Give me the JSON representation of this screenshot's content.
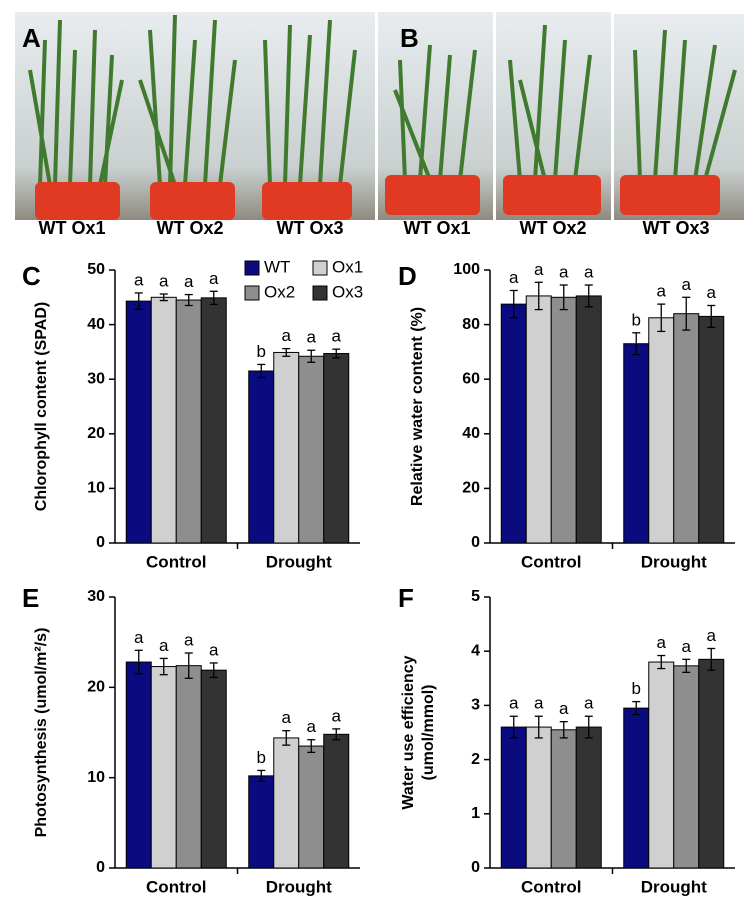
{
  "photo_panels": [
    {
      "label": "A",
      "captions": [
        "WT Ox1",
        "WT Ox2",
        "WT Ox3"
      ]
    },
    {
      "label": "B",
      "captions": [
        "WT Ox1",
        "WT Ox2",
        "WT Ox3"
      ]
    }
  ],
  "chart_data": [
    {
      "type": "bar",
      "panel": "C",
      "ylabel": "Chlorophyll content (SPAD)",
      "categories": [
        "Control",
        "Drought"
      ],
      "ylim": [
        0,
        50
      ],
      "yticks": [
        0,
        10,
        20,
        30,
        40,
        50
      ],
      "legend": "top-right",
      "series": [
        {
          "name": "WT",
          "color": "#0b0b80",
          "values": [
            44.3,
            31.5
          ],
          "errors": [
            1.5,
            1.2
          ],
          "letters": [
            "a",
            "b"
          ]
        },
        {
          "name": "Ox1",
          "color": "#d0d0d0",
          "values": [
            45,
            34.9
          ],
          "errors": [
            0.6,
            0.7
          ],
          "letters": [
            "a",
            "a"
          ]
        },
        {
          "name": "Ox2",
          "color": "#8e8e8e",
          "values": [
            44.5,
            34.2
          ],
          "errors": [
            1.0,
            1.1
          ],
          "letters": [
            "a",
            "a"
          ]
        },
        {
          "name": "Ox3",
          "color": "#333333",
          "values": [
            44.9,
            34.7
          ],
          "errors": [
            1.2,
            0.8
          ],
          "letters": [
            "a",
            "a"
          ]
        }
      ]
    },
    {
      "type": "bar",
      "panel": "D",
      "ylabel": "Relative water content (%)",
      "categories": [
        "Control",
        "Drought"
      ],
      "ylim": [
        0,
        100
      ],
      "yticks": [
        0,
        20,
        40,
        60,
        80,
        100
      ],
      "series": [
        {
          "color": "#0b0b80",
          "values": [
            87.5,
            73
          ],
          "errors": [
            5,
            4
          ],
          "letters": [
            "a",
            "b"
          ]
        },
        {
          "color": "#d0d0d0",
          "values": [
            90.5,
            82.5
          ],
          "errors": [
            5,
            5
          ],
          "letters": [
            "a",
            "a"
          ]
        },
        {
          "color": "#8e8e8e",
          "values": [
            90,
            84
          ],
          "errors": [
            4.5,
            6
          ],
          "letters": [
            "a",
            "a"
          ]
        },
        {
          "color": "#333333",
          "values": [
            90.5,
            83
          ],
          "errors": [
            4,
            4
          ],
          "letters": [
            "a",
            "a"
          ]
        }
      ]
    },
    {
      "type": "bar",
      "panel": "E",
      "ylabel": "Photosynthesis (umol/m²/s)",
      "categories": [
        "Control",
        "Drought"
      ],
      "ylim": [
        0,
        30
      ],
      "yticks": [
        0,
        10,
        20,
        30
      ],
      "series": [
        {
          "color": "#0b0b80",
          "values": [
            22.8,
            10.2
          ],
          "errors": [
            1.3,
            0.6
          ],
          "letters": [
            "a",
            "b"
          ]
        },
        {
          "color": "#d0d0d0",
          "values": [
            22.3,
            14.4
          ],
          "errors": [
            0.9,
            0.8
          ],
          "letters": [
            "a",
            "a"
          ]
        },
        {
          "color": "#8e8e8e",
          "values": [
            22.4,
            13.5
          ],
          "errors": [
            1.4,
            0.7
          ],
          "letters": [
            "a",
            "a"
          ]
        },
        {
          "color": "#333333",
          "values": [
            21.9,
            14.8
          ],
          "errors": [
            0.8,
            0.6
          ],
          "letters": [
            "a",
            "a"
          ]
        }
      ]
    },
    {
      "type": "bar",
      "panel": "F",
      "ylabel": [
        "Water use efficiency",
        "(umol/mmol)"
      ],
      "categories": [
        "Control",
        "Drought"
      ],
      "ylim": [
        0,
        5
      ],
      "yticks": [
        0,
        1,
        2,
        3,
        4,
        5
      ],
      "series": [
        {
          "color": "#0b0b80",
          "values": [
            2.6,
            2.95
          ],
          "errors": [
            0.2,
            0.12
          ],
          "letters": [
            "a",
            "b"
          ]
        },
        {
          "color": "#d0d0d0",
          "values": [
            2.6,
            3.8
          ],
          "errors": [
            0.2,
            0.12
          ],
          "letters": [
            "a",
            "a"
          ]
        },
        {
          "color": "#8e8e8e",
          "values": [
            2.55,
            3.73
          ],
          "errors": [
            0.15,
            0.12
          ],
          "letters": [
            "a",
            "a"
          ]
        },
        {
          "color": "#333333",
          "values": [
            2.6,
            3.85
          ],
          "errors": [
            0.2,
            0.2
          ],
          "letters": [
            "a",
            "a"
          ]
        }
      ]
    }
  ]
}
